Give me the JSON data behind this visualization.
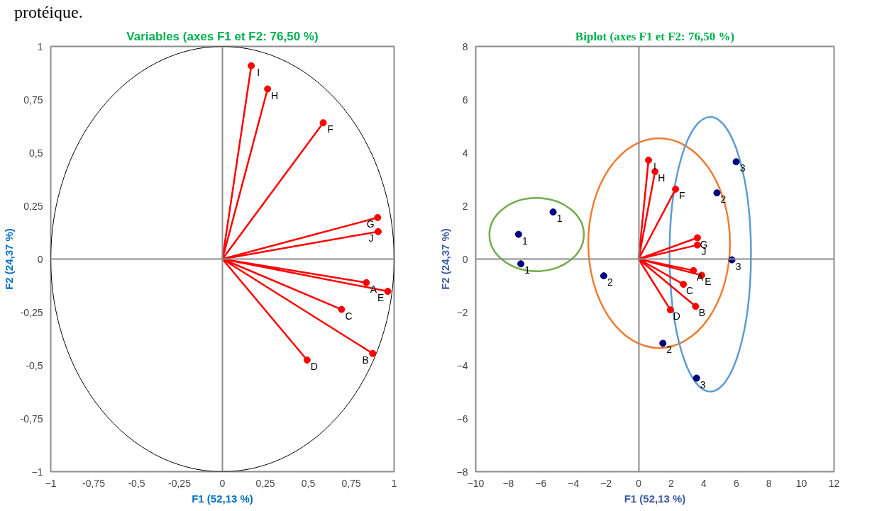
{
  "chart_data": [
    {
      "type": "scatter",
      "title": "Variables (axes F1 et F2: 76,50 %)",
      "xlabel": "F1 (52,13 %)",
      "ylabel": "F2 (24,37 %)",
      "annotations": [
        "protéique.",
        {
          "text": "I",
          "x": 0.168,
          "y": 0.909
        },
        {
          "text": "H",
          "x": 0.263,
          "y": 0.8
        },
        {
          "text": "F",
          "x": 0.587,
          "y": 0.641
        },
        {
          "text": "G",
          "x": 0.904,
          "y": 0.195
        },
        {
          "text": "J",
          "x": 0.907,
          "y": 0.129
        },
        {
          "text": "A",
          "x": 0.838,
          "y": -0.111
        },
        {
          "text": "E",
          "x": 0.963,
          "y": -0.152
        },
        {
          "text": "C",
          "x": 0.694,
          "y": -0.237
        },
        {
          "text": "B",
          "x": 0.875,
          "y": -0.444
        },
        {
          "text": "D",
          "x": 0.493,
          "y": -0.475
        }
      ],
      "xlim": [
        -1,
        1
      ],
      "ylim": [
        -1,
        1
      ],
      "xticks": [
        -1,
        {
          "value": -0.75,
          "label": "-0,75"
        },
        {
          "value": -0.5,
          "label": "-0,5"
        },
        {
          "value": -0.25,
          "label": "-0,25"
        },
        0,
        {
          "value": 0.25,
          "label": "0,25"
        },
        {
          "value": 0.5,
          "label": "0,5"
        },
        {
          "value": 0.75,
          "label": "0,75"
        },
        1
      ],
      "yticks": [
        -1,
        {
          "value": -0.75,
          "label": "-0,75"
        },
        {
          "value": -0.5,
          "label": "-0,5"
        },
        {
          "value": -0.25,
          "label": "-0,25"
        },
        0,
        {
          "value": 0.25,
          "label": "0,25"
        },
        {
          "value": 0.5,
          "label": "0,5"
        },
        {
          "value": 0.75,
          "label": "0,75"
        },
        1
      ],
      "series": [
        {
          "type": "line",
          "color": "#ff0000",
          "marker": "none",
          "x": [
            0,
            0.168
          ],
          "values": [
            0,
            0.909
          ]
        },
        {
          "type": "line",
          "color": "#ff0000",
          "marker": "none",
          "x": [
            0,
            0.263
          ],
          "values": [
            0,
            0.8
          ]
        },
        {
          "type": "line",
          "color": "#ff0000",
          "marker": "none",
          "x": [
            0,
            0.587
          ],
          "values": [
            0,
            0.641
          ]
        },
        {
          "type": "line",
          "color": "#ff0000",
          "marker": "none",
          "x": [
            0,
            0.904
          ],
          "values": [
            0,
            0.195
          ]
        },
        {
          "type": "line",
          "color": "#ff0000",
          "marker": "none",
          "x": [
            0,
            0.907
          ],
          "values": [
            0,
            0.129
          ]
        },
        {
          "type": "line",
          "color": "#ff0000",
          "marker": "none",
          "x": [
            0,
            0.838
          ],
          "values": [
            0,
            -0.111
          ]
        },
        {
          "type": "line",
          "color": "#ff0000",
          "marker": "none",
          "x": [
            0,
            0.963
          ],
          "values": [
            0,
            -0.152
          ]
        },
        {
          "type": "line",
          "color": "#ff0000",
          "marker": "none",
          "x": [
            0,
            0.694
          ],
          "values": [
            0,
            -0.237
          ]
        },
        {
          "type": "line",
          "color": "#ff0000",
          "marker": "none",
          "x": [
            0,
            0.875
          ],
          "values": [
            0,
            -0.444
          ]
        },
        {
          "type": "line",
          "color": "#ff0000",
          "marker": "none",
          "x": [
            0,
            0.493
          ],
          "values": [
            0,
            -0.475
          ]
        },
        {
          "color": "#ff0000",
          "marker": "circle",
          "x": [
            0.168,
            0.263,
            0.587,
            0.904,
            0.907,
            0.838,
            0.963,
            0.694,
            0.875,
            0.493
          ],
          "values": [
            0.909,
            0.8,
            0.641,
            0.195,
            0.129,
            -0.111,
            -0.152,
            -0.237,
            -0.444,
            -0.475
          ]
        }
      ]
    },
    {
      "type": "scatter",
      "title": "Biplot (axes F1 et F2: 76,50 %)",
      "xlabel": "F1 (52,13 %)",
      "ylabel": "F2 (24,37 %)",
      "annotations": [
        {
          "text": "I",
          "x": 0.61,
          "y": 3.72
        },
        {
          "text": "H",
          "x": 1.01,
          "y": 3.29
        },
        {
          "text": "F",
          "x": 2.27,
          "y": 2.63
        },
        {
          "text": "G",
          "x": 3.61,
          "y": 0.8
        },
        {
          "text": "J",
          "x": 3.61,
          "y": 0.53
        },
        {
          "text": "A",
          "x": 3.37,
          "y": -0.43
        },
        {
          "text": "E",
          "x": 3.87,
          "y": -0.61
        },
        {
          "text": "C",
          "x": 2.75,
          "y": -0.95
        },
        {
          "text": "B",
          "x": 3.5,
          "y": -1.78
        },
        {
          "text": "D",
          "x": 1.95,
          "y": -1.91
        },
        {
          "text": "1",
          "x": -5.25,
          "y": 1.77
        },
        {
          "text": "1",
          "x": -7.37,
          "y": 0.93
        },
        {
          "text": "1",
          "x": -7.23,
          "y": -0.18
        },
        {
          "text": "2",
          "x": -2.14,
          "y": -0.63
        },
        {
          "text": "2",
          "x": 1.49,
          "y": -3.17
        },
        {
          "text": "2",
          "x": 4.81,
          "y": 2.49
        },
        {
          "text": "3",
          "x": 5.99,
          "y": 3.66
        },
        {
          "text": "3",
          "x": 5.73,
          "y": -0.03
        },
        {
          "text": "3",
          "x": 3.56,
          "y": -4.48
        }
      ],
      "xlim": [
        -10,
        12
      ],
      "ylim": [
        -8,
        8
      ],
      "xticks": [
        -10,
        -8,
        -6,
        -4,
        -2,
        0,
        2,
        4,
        6,
        8,
        10,
        12
      ],
      "yticks": [
        -8,
        -6,
        -4,
        -2,
        0,
        2,
        4,
        6,
        8
      ],
      "series": [
        {
          "type": "line",
          "color": "#ff0000",
          "marker": "none",
          "x": [
            0,
            0.61
          ],
          "values": [
            0,
            3.72
          ]
        },
        {
          "type": "line",
          "color": "#ff0000",
          "marker": "none",
          "x": [
            0,
            1.01
          ],
          "values": [
            0,
            3.29
          ]
        },
        {
          "type": "line",
          "color": "#ff0000",
          "marker": "none",
          "x": [
            0,
            2.27
          ],
          "values": [
            0,
            2.63
          ]
        },
        {
          "type": "line",
          "color": "#ff0000",
          "marker": "none",
          "x": [
            0,
            3.61
          ],
          "values": [
            0,
            0.8
          ]
        },
        {
          "type": "line",
          "color": "#ff0000",
          "marker": "none",
          "x": [
            0,
            3.61
          ],
          "values": [
            0,
            0.53
          ]
        },
        {
          "type": "line",
          "color": "#ff0000",
          "marker": "none",
          "x": [
            0,
            3.37
          ],
          "values": [
            0,
            -0.43
          ]
        },
        {
          "type": "line",
          "color": "#ff0000",
          "marker": "none",
          "x": [
            0,
            3.87
          ],
          "values": [
            0,
            -0.61
          ]
        },
        {
          "type": "line",
          "color": "#ff0000",
          "marker": "none",
          "x": [
            0,
            2.75
          ],
          "values": [
            0,
            -0.95
          ]
        },
        {
          "type": "line",
          "color": "#ff0000",
          "marker": "none",
          "x": [
            0,
            3.5
          ],
          "values": [
            0,
            -1.78
          ]
        },
        {
          "type": "line",
          "color": "#ff0000",
          "marker": "none",
          "x": [
            0,
            1.95
          ],
          "values": [
            0,
            -1.91
          ]
        },
        {
          "color": "#ff0000",
          "marker": "circle",
          "x": [
            0.61,
            1.01,
            2.27,
            3.61,
            3.61,
            3.37,
            3.87,
            2.75,
            3.5,
            1.95
          ],
          "values": [
            3.72,
            3.29,
            2.63,
            0.8,
            0.53,
            -0.43,
            -0.61,
            -0.95,
            -1.78,
            -1.91
          ]
        },
        {
          "color": "#00007f",
          "marker": "circle",
          "x": [
            -5.25,
            -7.37,
            -7.23,
            -2.14,
            1.49,
            4.81,
            5.99,
            5.73,
            3.56
          ],
          "values": [
            1.77,
            0.93,
            -0.18,
            -0.63,
            -3.17,
            2.49,
            3.66,
            -0.03,
            -4.48
          ]
        }
      ]
    }
  ]
}
